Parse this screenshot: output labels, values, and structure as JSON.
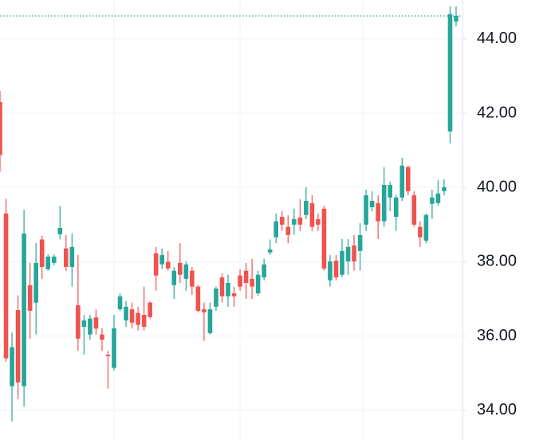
{
  "chart_data": {
    "type": "candlestick",
    "up_color": "#26a69a",
    "down_color": "#ef5350",
    "grid": true,
    "last_price_line": true,
    "ylim": [
      33.2,
      45.05
    ],
    "yticks": [
      {
        "value": 34,
        "label": "34.00"
      },
      {
        "value": 36,
        "label": "36.00"
      },
      {
        "value": 38,
        "label": "38.00"
      },
      {
        "value": 40,
        "label": "40.00"
      },
      {
        "value": 42,
        "label": "42.00"
      },
      {
        "value": 44,
        "label": "44.00"
      }
    ],
    "open": [
      42.3,
      39.3,
      34.65,
      36.7,
      34.65,
      37.37,
      36.9,
      38.6,
      37.8,
      37.97,
      38.74,
      38.36,
      37.86,
      36.83,
      36.25,
      36.04,
      36.5,
      36.04,
      35.5,
      35.14,
      36.72,
      36.42,
      36.72,
      36.62,
      36.57,
      36.9,
      38.23,
      37.93,
      38.0,
      37.37,
      37.97,
      37.54,
      37.76,
      37.33,
      36.72,
      36.08,
      36.79,
      37.58,
      37.07,
      37.15,
      37.63,
      37.76,
      37.54,
      37.15,
      37.58,
      38.25,
      38.66,
      39.21,
      38.94,
      39.0,
      39.19,
      39.26,
      39.58,
      39.15,
      39.43,
      37.5,
      38.03,
      37.65,
      38.01,
      38.44,
      38.29,
      39.0,
      39.47,
      39.58,
      39.09,
      39.73,
      39.21,
      39.73,
      40.55,
      39.79,
      38.94,
      38.57,
      39.56,
      39.58,
      39.9,
      41.51,
      44.47
    ],
    "high": [
      42.6,
      39.7,
      36.1,
      37.1,
      39.4,
      37.97,
      38.5,
      38.7,
      38.2,
      38.2,
      39.5,
      38.72,
      38.76,
      38.18,
      36.57,
      36.57,
      36.72,
      36.21,
      35.6,
      36.57,
      37.15,
      36.94,
      36.9,
      36.79,
      37.33,
      36.94,
      38.4,
      38.36,
      38.29,
      37.86,
      38.5,
      38.01,
      37.86,
      37.37,
      36.9,
      36.9,
      37.33,
      37.69,
      37.65,
      37.33,
      37.8,
      37.97,
      38.08,
      37.76,
      38.08,
      38.6,
      39.3,
      39.36,
      39.25,
      39.43,
      39.69,
      40.01,
      39.79,
      39.3,
      39.51,
      38.18,
      38.18,
      38.61,
      38.61,
      38.72,
      39.04,
      39.94,
      39.9,
      39.79,
      40.55,
      40.16,
      39.8,
      40.8,
      40.59,
      39.9,
      39.09,
      39.3,
      39.94,
      40.2,
      40.22,
      44.88,
      44.88
    ],
    "low": [
      40.43,
      35.3,
      33.7,
      34.3,
      34.1,
      35.93,
      36.04,
      37.54,
      37.76,
      37.9,
      38.6,
      37.75,
      37.33,
      35.6,
      35.5,
      35.9,
      36.04,
      35.6,
      34.58,
      35.07,
      36.68,
      36.25,
      36.2,
      36.15,
      36.15,
      36.47,
      37.22,
      37.8,
      37.76,
      37.0,
      37.43,
      37.22,
      37.11,
      36.64,
      35.87,
      36.04,
      36.68,
      36.9,
      36.79,
      36.79,
      37.22,
      37.0,
      37.0,
      37.08,
      37.5,
      38.18,
      38.5,
      38.83,
      38.5,
      38.72,
      38.83,
      39.15,
      38.83,
      38.83,
      37.76,
      37.33,
      37.5,
      37.58,
      37.65,
      37.76,
      37.76,
      38.83,
      39.36,
      38.61,
      38.94,
      39.36,
      38.83,
      39.64,
      39.79,
      38.94,
      38.4,
      38.5,
      39.15,
      39.51,
      39.79,
      41.19,
      44.34
    ],
    "close": [
      40.87,
      35.4,
      35.7,
      34.75,
      38.76,
      36.68,
      37.97,
      37.86,
      38.14,
      38.14,
      38.91,
      37.86,
      38.4,
      35.93,
      36.42,
      36.47,
      36.2,
      35.9,
      35.46,
      36.21,
      37.07,
      36.79,
      36.36,
      36.3,
      36.25,
      36.51,
      37.63,
      38.18,
      37.82,
      37.76,
      37.65,
      37.93,
      37.33,
      36.68,
      36.64,
      36.72,
      37.28,
      37.07,
      37.43,
      37.07,
      37.33,
      37.43,
      37.33,
      37.65,
      37.93,
      38.33,
      39.09,
      39.0,
      38.72,
      39.15,
      39.0,
      39.64,
      38.94,
      39.0,
      37.82,
      38.01,
      37.58,
      38.29,
      38.4,
      38.01,
      38.72,
      39.79,
      39.64,
      39.09,
      40.07,
      40.07,
      39.73,
      40.59,
      39.9,
      39.0,
      38.66,
      39.26,
      39.73,
      39.84,
      40.01,
      44.67,
      44.62
    ]
  }
}
